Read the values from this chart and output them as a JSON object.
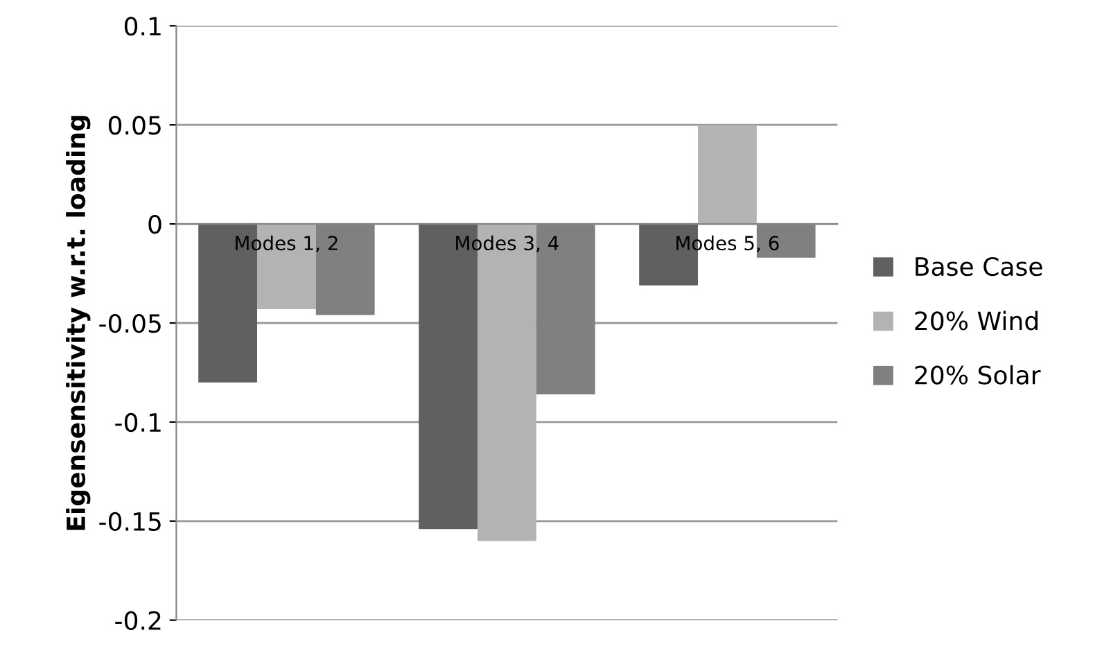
{
  "chart_data": {
    "type": "bar",
    "ylabel": "Eigensensitivity w.r.t. loading",
    "categories": [
      "Modes 1, 2",
      "Modes 3, 4",
      "Modes 5, 6"
    ],
    "series": [
      {
        "name": "Base Case",
        "color": "#606060",
        "values": [
          -0.08,
          -0.154,
          -0.031
        ]
      },
      {
        "name": "20% Wind",
        "color": "#b3b3b3",
        "values": [
          -0.043,
          -0.16,
          0.05
        ]
      },
      {
        "name": "20% Solar",
        "color": "#808080",
        "values": [
          -0.046,
          -0.086,
          -0.017
        ]
      }
    ],
    "ylim": [
      -0.2,
      0.1
    ],
    "yticks": [
      -0.2,
      -0.15,
      -0.1,
      -0.05,
      0,
      0.05,
      0.1
    ],
    "grid": "y",
    "legend": "right"
  }
}
